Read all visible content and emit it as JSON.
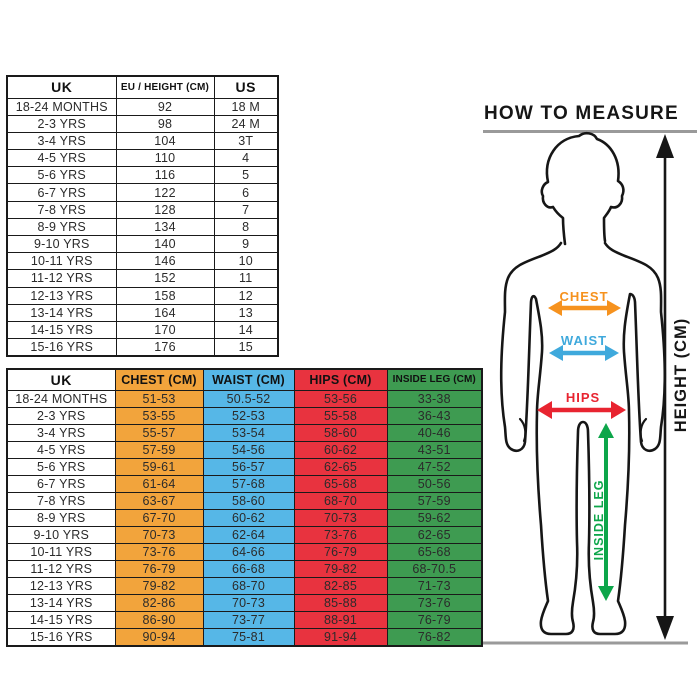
{
  "size_conversion_table": {
    "headers": [
      "UK",
      "EU / HEIGHT (CM)",
      "US"
    ],
    "rows": [
      [
        "18-24 MONTHS",
        "92",
        "18 M"
      ],
      [
        "2-3 YRS",
        "98",
        "24 M"
      ],
      [
        "3-4 YRS",
        "104",
        "3T"
      ],
      [
        "4-5 YRS",
        "110",
        "4"
      ],
      [
        "5-6 YRS",
        "116",
        "5"
      ],
      [
        "6-7 YRS",
        "122",
        "6"
      ],
      [
        "7-8 YRS",
        "128",
        "7"
      ],
      [
        "8-9 YRS",
        "134",
        "8"
      ],
      [
        "9-10 YRS",
        "140",
        "9"
      ],
      [
        "10-11 YRS",
        "146",
        "10"
      ],
      [
        "11-12 YRS",
        "152",
        "11"
      ],
      [
        "12-13 YRS",
        "158",
        "12"
      ],
      [
        "13-14 YRS",
        "164",
        "13"
      ],
      [
        "14-15 YRS",
        "170",
        "14"
      ],
      [
        "15-16 YRS",
        "176",
        "15"
      ]
    ]
  },
  "body_measurements_table": {
    "headers": [
      "UK",
      "CHEST (CM)",
      "WAIST (CM)",
      "HIPS (CM)",
      "INSIDE LEG (CM)"
    ],
    "rows": [
      [
        "18-24 MONTHS",
        "51-53",
        "50.5-52",
        "53-56",
        "33-38"
      ],
      [
        "2-3 YRS",
        "53-55",
        "52-53",
        "55-58",
        "36-43"
      ],
      [
        "3-4 YRS",
        "55-57",
        "53-54",
        "58-60",
        "40-46"
      ],
      [
        "4-5 YRS",
        "57-59",
        "54-56",
        "60-62",
        "43-51"
      ],
      [
        "5-6 YRS",
        "59-61",
        "56-57",
        "62-65",
        "47-52"
      ],
      [
        "6-7 YRS",
        "61-64",
        "57-68",
        "65-68",
        "50-56"
      ],
      [
        "7-8 YRS",
        "63-67",
        "58-60",
        "68-70",
        "57-59"
      ],
      [
        "8-9 YRS",
        "67-70",
        "60-62",
        "70-73",
        "59-62"
      ],
      [
        "9-10 YRS",
        "70-73",
        "62-64",
        "73-76",
        "62-65"
      ],
      [
        "10-11 YRS",
        "73-76",
        "64-66",
        "76-79",
        "65-68"
      ],
      [
        "11-12 YRS",
        "76-79",
        "66-68",
        "79-82",
        "68-70.5"
      ],
      [
        "12-13 YRS",
        "79-82",
        "68-70",
        "82-85",
        "71-73"
      ],
      [
        "13-14 YRS",
        "82-86",
        "70-73",
        "85-88",
        "73-76"
      ],
      [
        "14-15 YRS",
        "86-90",
        "73-77",
        "88-91",
        "76-79"
      ],
      [
        "15-16 YRS",
        "90-94",
        "75-81",
        "91-94",
        "76-82"
      ]
    ]
  },
  "diagram": {
    "title": "HOW TO MEASURE",
    "chest_label": "CHEST",
    "waist_label": "WAIST",
    "hips_label": "HIPS",
    "inside_leg_label": "INSIDE LEG",
    "height_label": "HEIGHT (CM)"
  },
  "colors": {
    "chest": "#F2A43C",
    "waist": "#56B7E7",
    "hips": "#E8333F",
    "inside_leg": "#3E9B51",
    "chest_arrow": "#F6921E",
    "waist_arrow": "#3FA9DC",
    "hips_arrow": "#E82430",
    "inside_leg_arrow": "#0DA64A"
  }
}
